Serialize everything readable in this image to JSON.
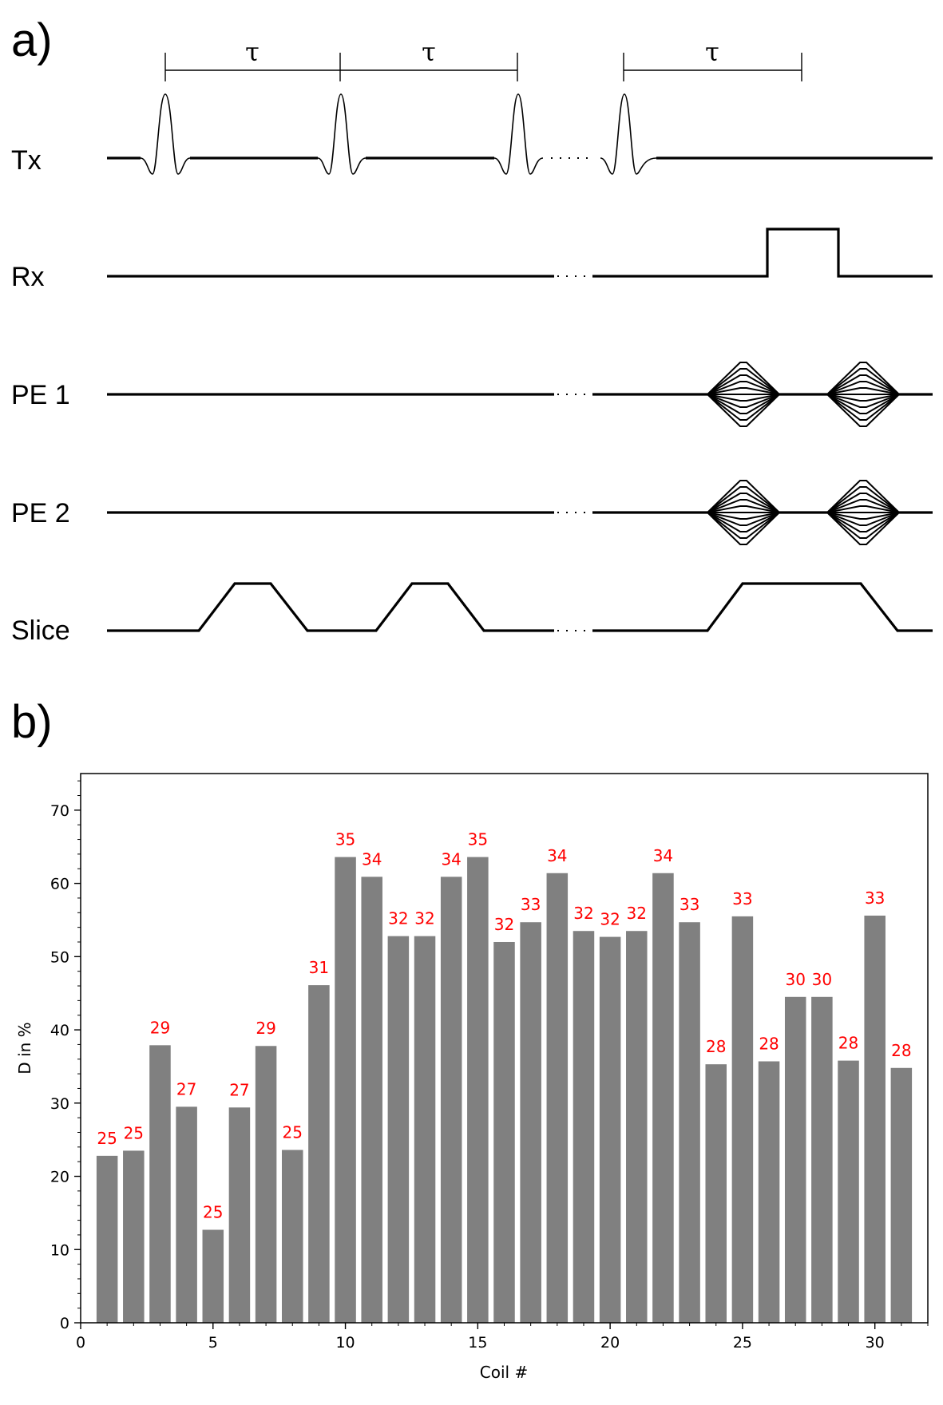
{
  "panel_a": {
    "label": "a)",
    "tau_symbol": "τ",
    "rows": [
      "Tx",
      "Rx",
      "PE 1",
      "PE 2",
      "Slice"
    ]
  },
  "panel_b": {
    "label": "b)"
  },
  "colors": {
    "bar": "#808080",
    "bar_label": "#ff0000",
    "waveform": "#000000"
  },
  "chart_data": {
    "type": "bar",
    "title": "",
    "xlabel": "Coil #",
    "ylabel": "D in %",
    "xlim": [
      0,
      32
    ],
    "ylim": [
      0,
      75
    ],
    "xticks": [
      0,
      5,
      10,
      15,
      20,
      25,
      30
    ],
    "yticks": [
      0,
      10,
      20,
      30,
      40,
      50,
      60,
      70
    ],
    "grid": false,
    "legend": "none",
    "categories": [
      1,
      2,
      3,
      4,
      5,
      6,
      7,
      8,
      9,
      10,
      11,
      12,
      13,
      14,
      15,
      16,
      17,
      18,
      19,
      20,
      21,
      22,
      23,
      24,
      25,
      26,
      27,
      28,
      29,
      30,
      31
    ],
    "values": [
      22.8,
      23.5,
      37.9,
      29.5,
      12.7,
      29.4,
      37.8,
      23.6,
      46.1,
      63.6,
      60.9,
      52.8,
      52.8,
      60.9,
      63.6,
      52.0,
      54.7,
      61.4,
      53.5,
      52.7,
      53.5,
      61.4,
      54.7,
      35.3,
      55.5,
      35.7,
      44.5,
      44.5,
      35.8,
      55.6,
      34.8
    ],
    "bar_labels": [
      "25",
      "25",
      "29",
      "27",
      "25",
      "27",
      "29",
      "25",
      "31",
      "35",
      "34",
      "32",
      "32",
      "34",
      "35",
      "32",
      "33",
      "34",
      "32",
      "32",
      "32",
      "34",
      "33",
      "28",
      "33",
      "28",
      "30",
      "30",
      "28",
      "33",
      "28"
    ]
  }
}
